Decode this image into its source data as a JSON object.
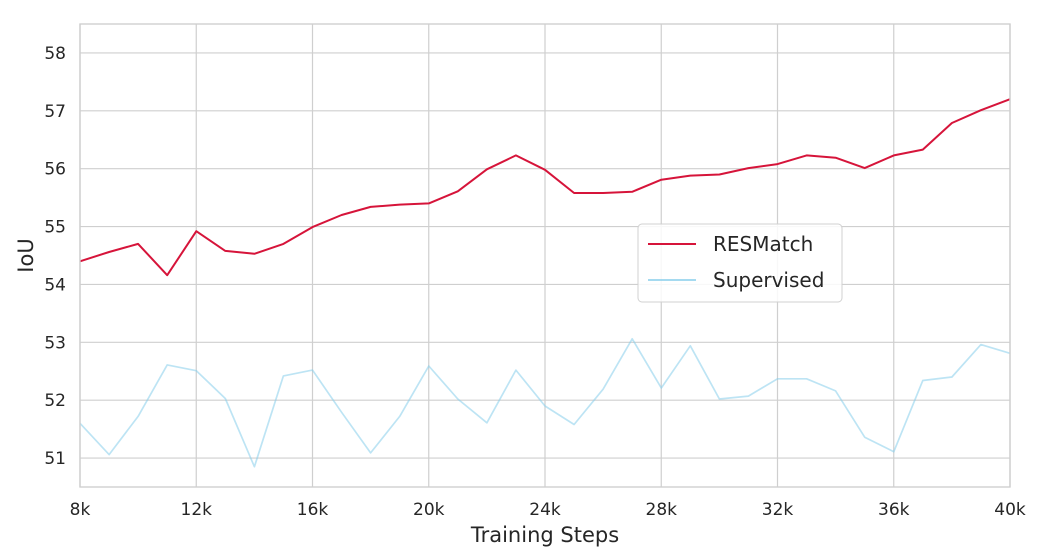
{
  "chart_data": {
    "type": "line",
    "xlabel": "Training Steps",
    "ylabel": "IoU",
    "xlim": [
      8000,
      40000
    ],
    "ylim": [
      50.5,
      58.5
    ],
    "xticks": [
      8000,
      12000,
      16000,
      20000,
      24000,
      28000,
      32000,
      36000,
      40000
    ],
    "xtick_labels": [
      "8k",
      "12k",
      "16k",
      "20k",
      "24k",
      "28k",
      "32k",
      "36k",
      "40k"
    ],
    "yticks": [
      51,
      52,
      53,
      54,
      55,
      56,
      57,
      58
    ],
    "ytick_labels": [
      "51",
      "52",
      "53",
      "54",
      "55",
      "56",
      "57",
      "58"
    ],
    "grid": true,
    "legend_position": "center-right",
    "x": [
      8000,
      9000,
      10000,
      11000,
      12000,
      13000,
      14000,
      15000,
      16000,
      17000,
      18000,
      19000,
      20000,
      21000,
      22000,
      23000,
      24000,
      25000,
      26000,
      27000,
      28000,
      29000,
      30000,
      31000,
      32000,
      33000,
      34000,
      35000,
      36000,
      37000,
      38000,
      39000,
      40000
    ],
    "series": [
      {
        "name": "RESMatch",
        "color": "#d6143a",
        "values": [
          54.4,
          54.56,
          54.7,
          54.16,
          54.92,
          54.58,
          54.53,
          54.7,
          54.99,
          55.2,
          55.34,
          55.38,
          55.4,
          55.61,
          55.99,
          56.23,
          55.98,
          55.58,
          55.58,
          55.6,
          55.81,
          55.88,
          55.9,
          56.01,
          56.08,
          56.23,
          56.19,
          56.01,
          56.23,
          56.33,
          56.79,
          57.01,
          57.2
        ]
      },
      {
        "name": "Supervised",
        "color": "#87ceeb",
        "values": [
          51.6,
          51.06,
          51.72,
          52.61,
          52.51,
          52.03,
          50.85,
          52.42,
          52.52,
          51.79,
          51.09,
          51.72,
          52.59,
          52.02,
          51.61,
          52.52,
          51.9,
          51.58,
          52.19,
          53.06,
          52.21,
          52.94,
          52.02,
          52.07,
          52.37,
          52.37,
          52.16,
          51.36,
          51.11,
          52.34,
          52.4,
          52.96,
          52.81
        ]
      }
    ]
  }
}
